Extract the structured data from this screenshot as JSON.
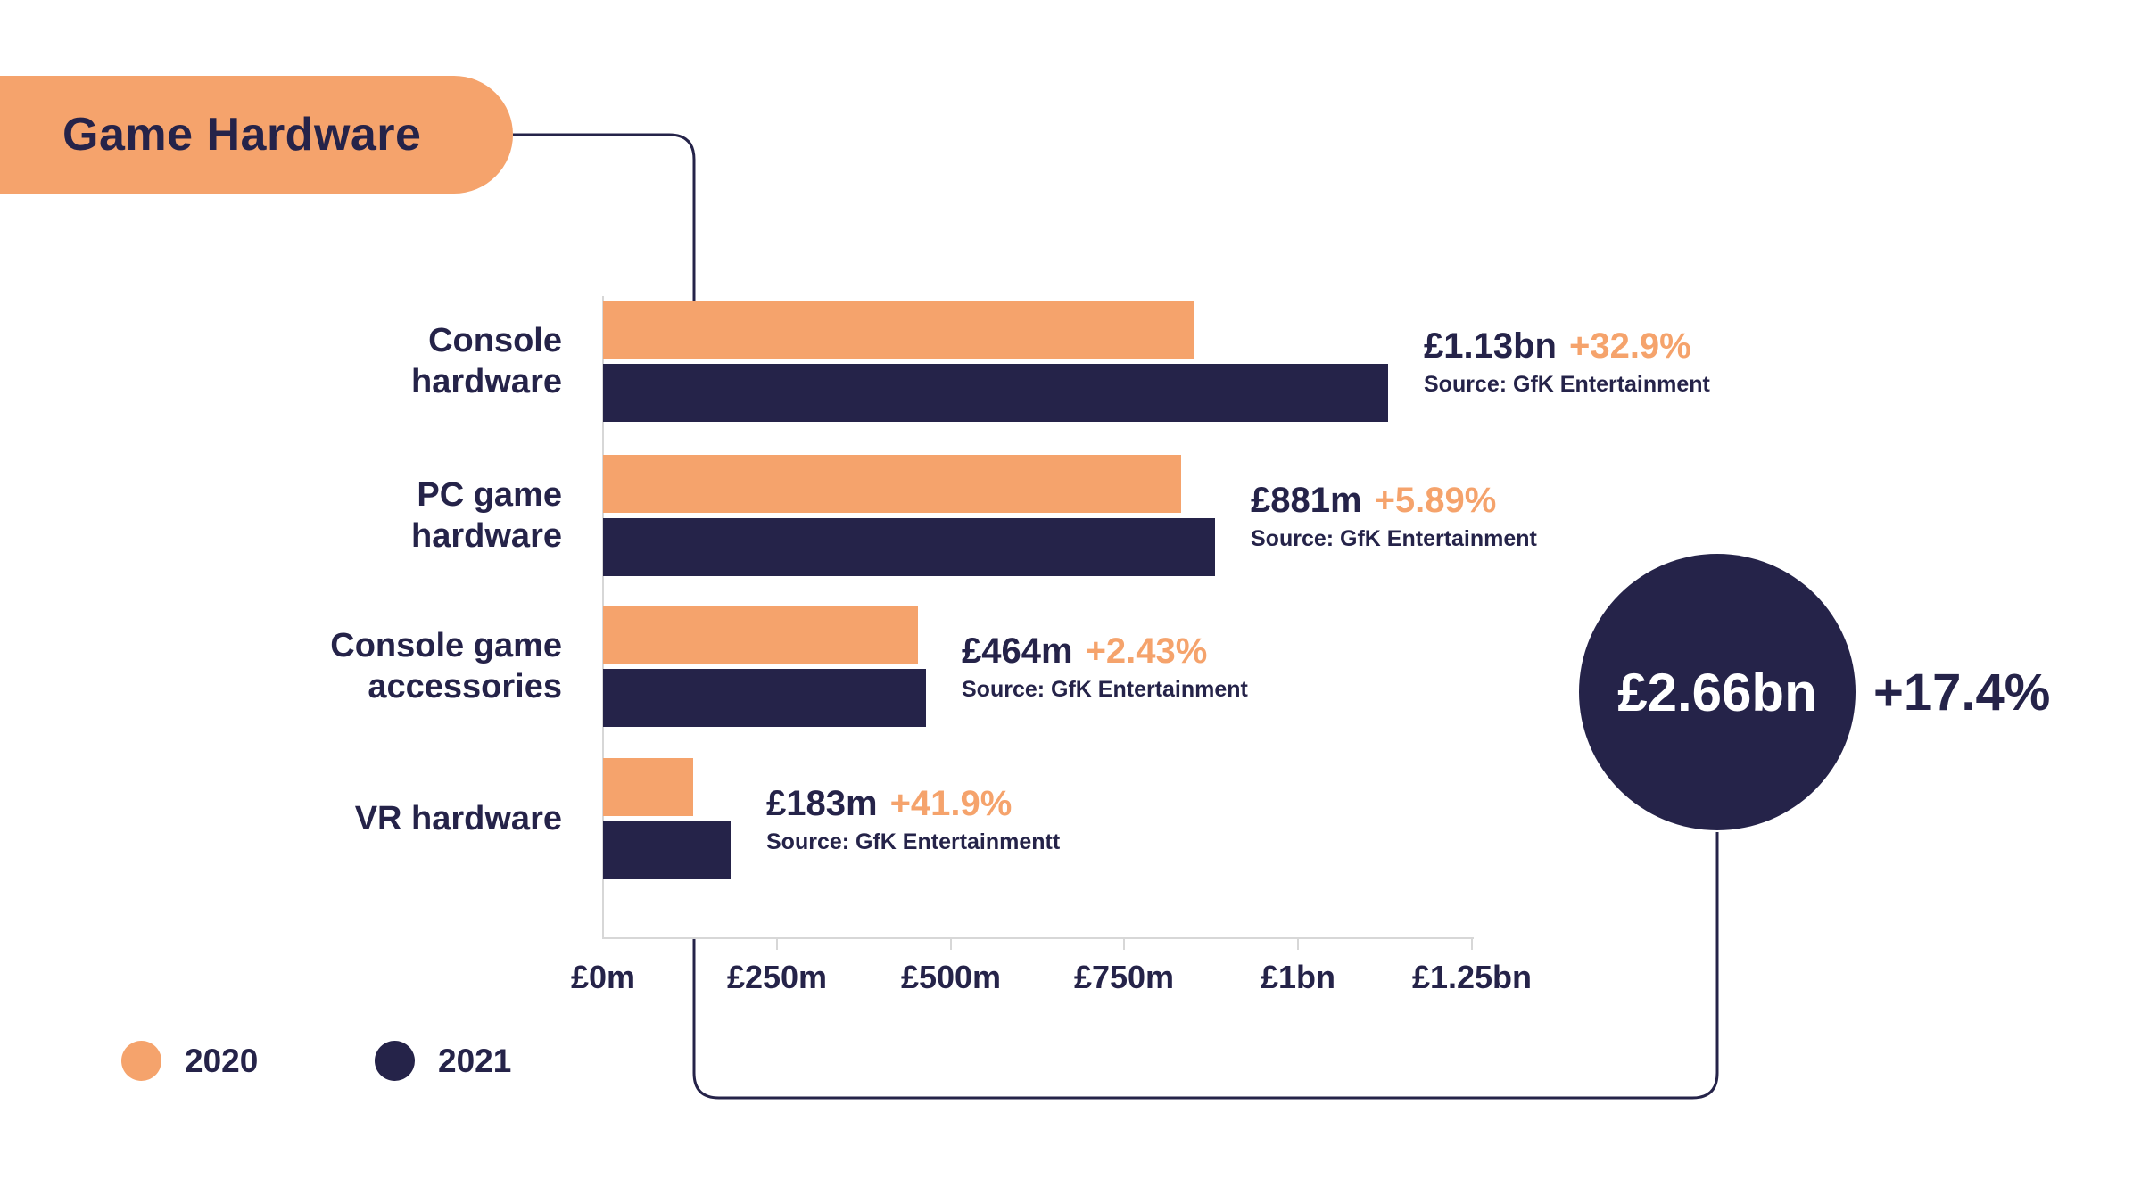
{
  "title": "Game Hardware",
  "colors": {
    "accent_orange": "#F5A36C",
    "navy": "#252349",
    "axis_gray": "#D7D7D7"
  },
  "legend": [
    {
      "label": "2020",
      "color": "#F5A36C"
    },
    {
      "label": "2021",
      "color": "#252349"
    }
  ],
  "summary": {
    "total": "£2.66bn",
    "change": "+17.4%"
  },
  "chart_data": {
    "type": "bar",
    "orientation": "horizontal",
    "title": "Game Hardware",
    "categories": [
      "Console hardware",
      "PC game hardware",
      "Console game accessories",
      "VR hardware"
    ],
    "series": [
      {
        "name": "2020",
        "color": "#F5A36C",
        "values": [
          850,
          832,
          453,
          129
        ]
      },
      {
        "name": "2021",
        "color": "#252349",
        "values": [
          1130,
          881,
          464,
          183
        ]
      }
    ],
    "xlim": [
      0,
      1250
    ],
    "x_ticks": [
      0,
      250,
      500,
      750,
      1000,
      1250
    ],
    "x_tick_labels": [
      "£0m",
      "£250m",
      "£500m",
      "£750m",
      "£1bn",
      "£1.25bn"
    ],
    "grid": false,
    "legend_position": "bottom-left",
    "annotations": [
      {
        "category": "Console hardware",
        "value": "£1.13bn",
        "change": "+32.9%",
        "source": "Source: GfK Entertainment"
      },
      {
        "category": "PC game hardware",
        "value": "£881m",
        "change": "+5.89%",
        "source": "Source: GfK Entertainment"
      },
      {
        "category": "Console game accessories",
        "value": "£464m",
        "change": "+2.43%",
        "source": "Source: GfK Entertainment"
      },
      {
        "category": "VR hardware",
        "value": "£183m",
        "change": "+41.9%",
        "source": "Source: GfK Entertainmentt"
      }
    ],
    "total_annotation": {
      "value": "£2.66bn",
      "change": "+17.4%"
    }
  }
}
